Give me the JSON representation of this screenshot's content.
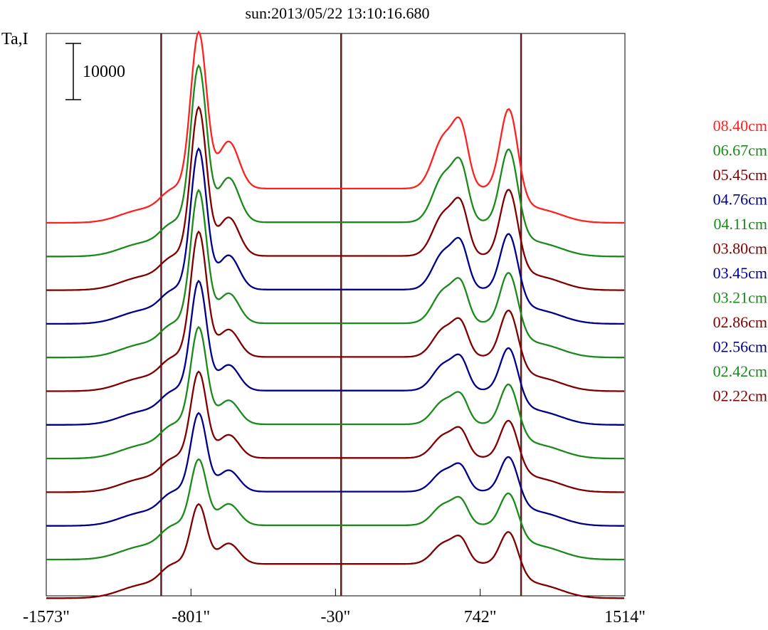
{
  "chart_data": {
    "type": "line",
    "title": "sun:2013/05/22 13:10:16.680",
    "ylabel": "Ta,I",
    "scale_bar_label": "10000",
    "x_tick_labels": [
      {
        "label": "-1573\"",
        "value": -1573
      },
      {
        "label": "-801\"",
        "value": -801
      },
      {
        "label": "-30\"",
        "value": -30
      },
      {
        "label": "742\"",
        "value": 742
      },
      {
        "label": "1514\"",
        "value": 1514
      }
    ],
    "xlim": [
      -1573,
      1514
    ],
    "vertical_markers": [
      -960,
      0,
      960
    ],
    "colors": {
      "red": "#ff2020",
      "green": "#1a8a1a",
      "brown": "#800000",
      "blue": "#00008b",
      "title": "#1a1a6a",
      "marker": "#5a1f1f"
    },
    "series": [
      {
        "name": "08.40cm",
        "color": "#ff2020",
        "baseline": 0,
        "amp_limb": 0,
        "left_peak": 1.0,
        "shoulder": 0.55,
        "right_double": 0.55,
        "right_peak": 0.6
      },
      {
        "name": "06.67cm",
        "color": "#1a8a1a",
        "baseline": 1,
        "amp_limb": 0,
        "left_peak": 1.0,
        "shoulder": 0.52,
        "right_double": 0.5,
        "right_peak": 0.55
      },
      {
        "name": "05.45cm",
        "color": "#800000",
        "baseline": 2,
        "amp_limb": 0,
        "left_peak": 0.95,
        "shoulder": 0.45,
        "right_double": 0.45,
        "right_peak": 0.5
      },
      {
        "name": "04.76cm",
        "color": "#00008b",
        "baseline": 3,
        "amp_limb": 0,
        "left_peak": 0.9,
        "shoulder": 0.4,
        "right_double": 0.4,
        "right_peak": 0.42
      },
      {
        "name": "04.11cm",
        "color": "#1a8a1a",
        "baseline": 4,
        "amp_limb": 0,
        "left_peak": 0.85,
        "shoulder": 0.35,
        "right_double": 0.35,
        "right_peak": 0.38
      },
      {
        "name": "03.80cm",
        "color": "#800000",
        "baseline": 5,
        "amp_limb": 0,
        "left_peak": 0.8,
        "shoulder": 0.32,
        "right_double": 0.3,
        "right_peak": 0.35
      },
      {
        "name": "03.45cm",
        "color": "#00008b",
        "baseline": 6,
        "amp_limb": 0,
        "left_peak": 0.7,
        "shoulder": 0.3,
        "right_double": 0.28,
        "right_peak": 0.32
      },
      {
        "name": "03.21cm",
        "color": "#1a8a1a",
        "baseline": 7,
        "amp_limb": 0,
        "left_peak": 0.62,
        "shoulder": 0.28,
        "right_double": 0.25,
        "right_peak": 0.3
      },
      {
        "name": "02.86cm",
        "color": "#800000",
        "baseline": 8,
        "amp_limb": 0,
        "left_peak": 0.55,
        "shoulder": 0.27,
        "right_double": 0.24,
        "right_peak": 0.28
      },
      {
        "name": "02.56cm",
        "color": "#00008b",
        "baseline": 9,
        "amp_limb": 0,
        "left_peak": 0.5,
        "shoulder": 0.25,
        "right_double": 0.22,
        "right_peak": 0.26
      },
      {
        "name": "02.42cm",
        "color": "#1a8a1a",
        "baseline": 10,
        "amp_limb": 0,
        "left_peak": 0.42,
        "shoulder": 0.25,
        "right_double": 0.22,
        "right_peak": 0.24
      },
      {
        "name": "02.22cm",
        "color": "#800000",
        "baseline": 11,
        "amp_limb": 0,
        "left_peak": 0.38,
        "shoulder": 0.24,
        "right_double": 0.22,
        "right_peak": 0.24
      }
    ]
  }
}
